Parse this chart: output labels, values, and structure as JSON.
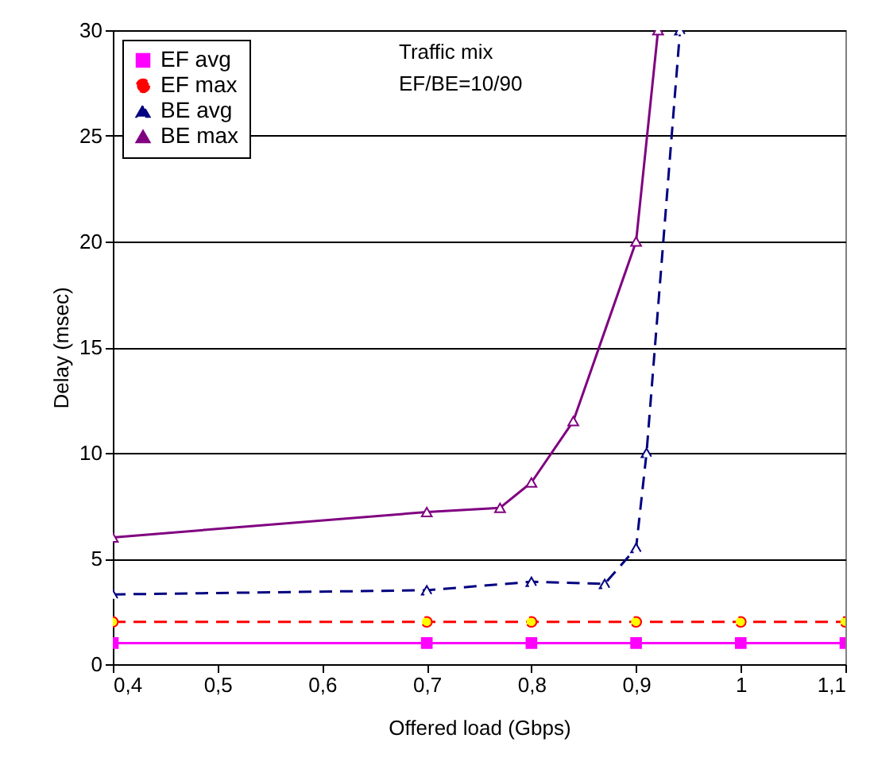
{
  "chart_data": {
    "type": "line",
    "xlabel": "Offered load (Gbps)",
    "ylabel": "Delay (msec)",
    "annotations": [
      "Traffic mix\nEF/BE=10/90"
    ],
    "xlim": [
      0.4,
      1.1
    ],
    "xticks": [
      {
        "value": 0.4,
        "label": "0,4"
      },
      {
        "value": 0.5,
        "label": "0,5"
      },
      {
        "value": 0.6,
        "label": "0,6"
      },
      {
        "value": 0.7,
        "label": "0,7"
      },
      {
        "value": 0.8,
        "label": "0,8"
      },
      {
        "value": 0.9,
        "label": "0,9"
      },
      {
        "value": 1,
        "label": "1"
      },
      {
        "value": 1.1,
        "label": "1,1"
      }
    ],
    "ylim": [
      0,
      30
    ],
    "yticks": [
      0,
      5,
      10,
      15,
      20,
      25,
      30
    ],
    "grid": "y",
    "legend": "top left",
    "series": [
      {
        "name": "EF avg",
        "color": "#ff00ff",
        "marker": "square",
        "line_style": "solid",
        "x": [
          0.4,
          0.7,
          0.8,
          0.9,
          1,
          1.1
        ],
        "values": [
          1,
          1,
          1,
          1,
          1,
          1
        ]
      },
      {
        "name": "EF max",
        "color": "#ff0000",
        "marker": "circle",
        "line_style": "dashed",
        "x": [
          0.4,
          0.7,
          0.8,
          0.9,
          1,
          1.1
        ],
        "values": [
          2,
          2,
          2,
          2,
          2,
          2
        ]
      },
      {
        "name": "BE avg",
        "color": "#000080",
        "marker": "triangle",
        "line_style": "dashed",
        "x": [
          0.4,
          0.7,
          0.8,
          0.87,
          0.9,
          0.91,
          0.942
        ],
        "values": [
          3.3,
          3.5,
          3.9,
          3.8,
          5.5,
          10,
          30
        ]
      },
      {
        "name": "BE max",
        "color": "#800080",
        "marker": "triangle",
        "line_style": "solid",
        "x": [
          0.4,
          0.7,
          0.77,
          0.8,
          0.84,
          0.9,
          0.921
        ],
        "values": [
          6,
          7.2,
          7.4,
          8.6,
          11.5,
          20,
          30
        ]
      }
    ]
  }
}
